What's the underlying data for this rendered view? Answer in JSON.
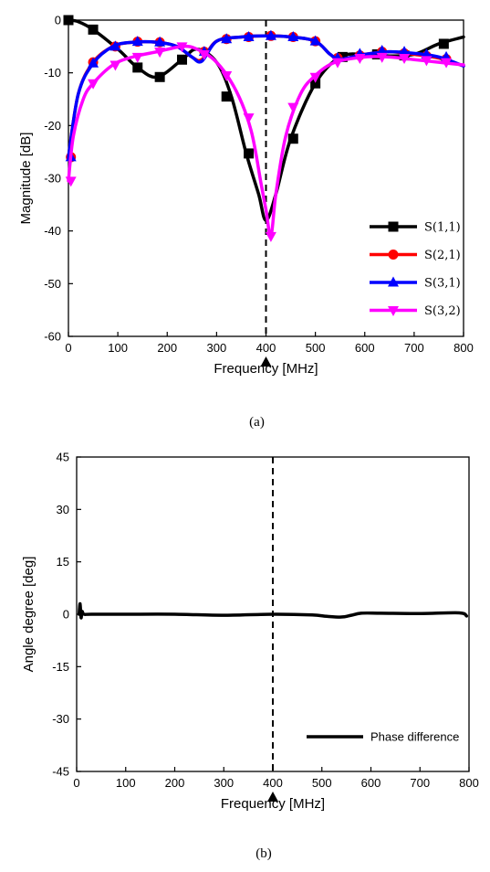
{
  "chart_data": [
    {
      "type": "line",
      "xlabel": "Frequency [MHz]",
      "ylabel": "Magnitude [dB]",
      "xlim": [
        0,
        800
      ],
      "ylim": [
        -60,
        0
      ],
      "xticks": [
        0,
        100,
        200,
        300,
        400,
        500,
        600,
        700,
        800
      ],
      "yticks": [
        0,
        -10,
        -20,
        -30,
        -40,
        -50,
        -60
      ],
      "legend_position": "bottom-right",
      "grid": false,
      "caption": "(a)",
      "marker_frequency": 400,
      "series": [
        {
          "name": "S(1,1)",
          "color": "#000000",
          "marker": "square",
          "x": [
            0,
            20,
            50,
            100,
            140,
            180,
            230,
            260,
            300,
            330,
            360,
            385,
            400,
            420,
            450,
            500,
            550,
            600,
            650,
            700,
            750,
            800
          ],
          "y": [
            0,
            -0.3,
            -1.8,
            -5.5,
            -9,
            -10.8,
            -7.5,
            -5.5,
            -8,
            -14.5,
            -25.3,
            -33,
            -38,
            -33,
            -22.5,
            -12,
            -7,
            -6.5,
            -6.8,
            -6.5,
            -4.5,
            -3.2
          ],
          "marker_x": [
            0,
            50,
            140,
            185,
            230,
            320,
            365,
            455,
            500,
            555,
            625,
            680,
            760
          ],
          "marker_y": [
            0,
            -1.8,
            -9,
            -10.8,
            -7.5,
            -14.5,
            -25.3,
            -22.5,
            -12,
            -7,
            -6.5,
            -6.7,
            -4.5
          ]
        },
        {
          "name": "S(2,1)",
          "color": "#ff0000",
          "marker": "circle",
          "x": [
            0,
            20,
            50,
            90,
            130,
            180,
            220,
            250,
            270,
            300,
            350,
            400,
            450,
            500,
            530,
            550,
            600,
            650,
            700,
            750,
            800
          ],
          "y": [
            -26,
            -14,
            -8,
            -5,
            -4.2,
            -4.2,
            -5,
            -7,
            -7.5,
            -4,
            -3.2,
            -3,
            -3.2,
            -4,
            -6.5,
            -7.4,
            -6.5,
            -6,
            -6.5,
            -7.2,
            -8.7
          ],
          "marker_x": [
            5,
            50,
            95,
            140,
            185,
            275,
            320,
            365,
            410,
            455,
            500,
            545,
            590,
            635,
            680,
            725,
            765
          ],
          "marker_y": [
            -26,
            -8,
            -5,
            -4.1,
            -4.2,
            -6,
            -3.6,
            -3.2,
            -3,
            -3.2,
            -4,
            -7.2,
            -6.7,
            -6,
            -6.3,
            -6.8,
            -7.4
          ]
        },
        {
          "name": "S(3,1)",
          "color": "#0000ff",
          "marker": "triangle-up",
          "x": [
            0,
            20,
            50,
            90,
            130,
            180,
            220,
            250,
            270,
            300,
            350,
            400,
            450,
            500,
            530,
            550,
            600,
            650,
            700,
            750,
            800
          ],
          "y": [
            -26,
            -14,
            -8.2,
            -5,
            -4.2,
            -4.2,
            -5,
            -7,
            -7.8,
            -4,
            -3.2,
            -3,
            -3.2,
            -4,
            -6.5,
            -7.4,
            -6.5,
            -6,
            -6.3,
            -7,
            -8.7
          ],
          "marker_x": [
            5,
            50,
            95,
            140,
            185,
            275,
            320,
            365,
            410,
            455,
            500,
            545,
            590,
            635,
            680,
            725,
            765
          ],
          "marker_y": [
            -26,
            -8.2,
            -5,
            -4.1,
            -4.2,
            -6,
            -3.6,
            -3.2,
            -3,
            -3.2,
            -4,
            -7.2,
            -6.4,
            -5.8,
            -6,
            -6.5,
            -7
          ]
        },
        {
          "name": "S(3,2)",
          "color": "#ff00ff",
          "marker": "triangle-down",
          "x": [
            0,
            10,
            30,
            50,
            90,
            130,
            180,
            230,
            260,
            300,
            340,
            370,
            390,
            400,
            410,
            420,
            440,
            470,
            500,
            540,
            600,
            650,
            700,
            750,
            800
          ],
          "y": [
            -30.5,
            -22,
            -15,
            -12,
            -8.5,
            -7,
            -6,
            -5,
            -5.5,
            -8,
            -13.5,
            -21,
            -31,
            -36,
            -41,
            -33,
            -22,
            -14,
            -10.5,
            -8,
            -7,
            -7,
            -7.5,
            -8,
            -8.5
          ],
          "marker_x": [
            5,
            50,
            95,
            140,
            185,
            230,
            275,
            320,
            365,
            410,
            455,
            500,
            545,
            590,
            635,
            680,
            725,
            765
          ],
          "marker_y": [
            -30.5,
            -12,
            -8.5,
            -7,
            -6,
            -5,
            -6.5,
            -10.5,
            -18.5,
            -41,
            -16.5,
            -10.8,
            -8,
            -7.2,
            -7,
            -7.2,
            -7.6,
            -8
          ]
        }
      ]
    },
    {
      "type": "line",
      "xlabel": "Frequency [MHz]",
      "ylabel": "Angle degree [deg]",
      "xlim": [
        0,
        800
      ],
      "ylim": [
        -45,
        45
      ],
      "xticks": [
        0,
        100,
        200,
        300,
        400,
        500,
        600,
        700,
        800
      ],
      "yticks": [
        45,
        30,
        15,
        0,
        -15,
        -30,
        -45
      ],
      "legend_position": "bottom-right",
      "grid": false,
      "caption": "(b)",
      "marker_frequency": 400,
      "series": [
        {
          "name": "Phase difference",
          "color": "#000000",
          "x": [
            5,
            7,
            9,
            11,
            15,
            30,
            100,
            200,
            300,
            400,
            480,
            510,
            540,
            560,
            580,
            620,
            700,
            780,
            795
          ],
          "y": [
            0,
            3,
            -1,
            0.8,
            0,
            0,
            0,
            0,
            -0.3,
            0,
            -0.2,
            -0.6,
            -0.8,
            -0.3,
            0.3,
            0.3,
            0.2,
            0.4,
            -0.5
          ]
        }
      ]
    }
  ]
}
